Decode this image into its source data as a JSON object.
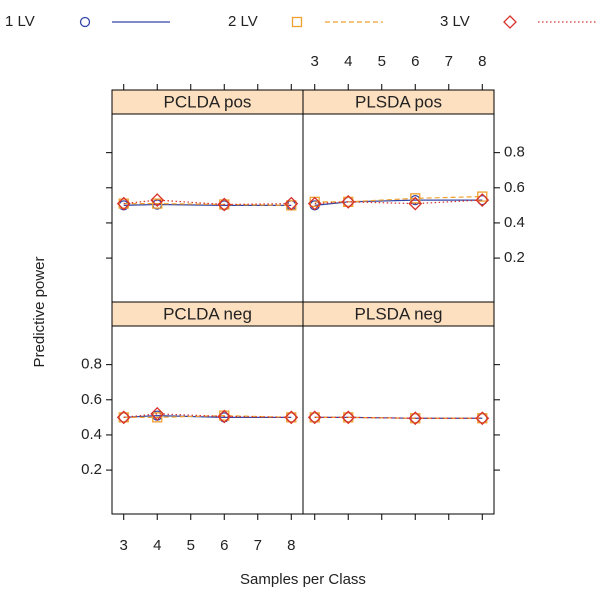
{
  "chart_data": {
    "type": "line",
    "xlabel": "Samples per Class",
    "ylabel": "Predictive power",
    "x": [
      3,
      4,
      6,
      8
    ],
    "xlim": [
      2.65,
      8.35
    ],
    "xticks": [
      3,
      4,
      5,
      6,
      7,
      8
    ],
    "ylim": [
      -0.05,
      1.02
    ],
    "yticks": [
      0.2,
      0.4,
      0.6,
      0.8
    ],
    "series": [
      {
        "name": "1 LV",
        "color": "#3346a6",
        "marker": "circle",
        "dash": "solid"
      },
      {
        "name": "2 LV",
        "color": "#f0a030",
        "marker": "square",
        "dash": "dashed"
      },
      {
        "name": "3 LV",
        "color": "#d8302a",
        "marker": "diamond",
        "dash": "dotted"
      }
    ],
    "panels": [
      {
        "title": "PCLDA neg",
        "values": [
          [
            0.5,
            0.51,
            0.5,
            0.5
          ],
          [
            0.5,
            0.5,
            0.51,
            0.5
          ],
          [
            0.5,
            0.52,
            0.505,
            0.5
          ]
        ]
      },
      {
        "title": "PLSDA neg",
        "values": [
          [
            0.5,
            0.5,
            0.495,
            0.495
          ],
          [
            0.5,
            0.5,
            0.495,
            0.495
          ],
          [
            0.5,
            0.5,
            0.495,
            0.495
          ]
        ]
      },
      {
        "title": "PCLDA pos",
        "values": [
          [
            0.5,
            0.505,
            0.5,
            0.5
          ],
          [
            0.51,
            0.51,
            0.505,
            0.5
          ],
          [
            0.51,
            0.53,
            0.505,
            0.51
          ]
        ]
      },
      {
        "title": "PLSDA pos",
        "values": [
          [
            0.5,
            0.52,
            0.53,
            0.53
          ],
          [
            0.52,
            0.52,
            0.54,
            0.55
          ],
          [
            0.51,
            0.52,
            0.51,
            0.53
          ]
        ]
      }
    ]
  }
}
